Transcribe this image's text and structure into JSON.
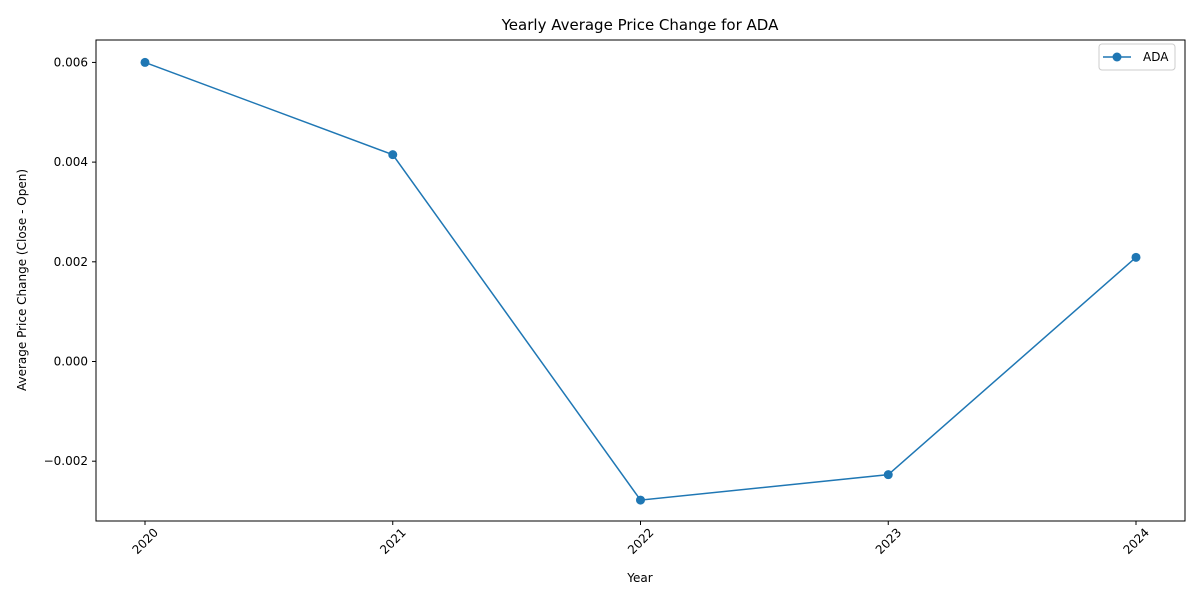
{
  "chart_data": {
    "type": "line",
    "title": "Yearly Average Price Change for ADA",
    "xlabel": "Year",
    "ylabel": "Average Price Change (Close - Open)",
    "x": [
      "2020",
      "2021",
      "2022",
      "2023",
      "2024"
    ],
    "series": [
      {
        "name": "ADA",
        "color": "#1f77b4",
        "marker": "circle",
        "values": [
          0.006,
          0.00415,
          -0.00278,
          -0.00227,
          0.00209
        ]
      }
    ],
    "yticks": [
      -0.002,
      0.0,
      0.002,
      0.004,
      0.006
    ],
    "ytick_labels": [
      "−0.002",
      "0.000",
      "0.002",
      "0.004",
      "0.006"
    ],
    "ylim": [
      -0.0032,
      0.00645
    ],
    "xtick_rotation": 45,
    "grid": false,
    "legend_position": "top-right"
  }
}
